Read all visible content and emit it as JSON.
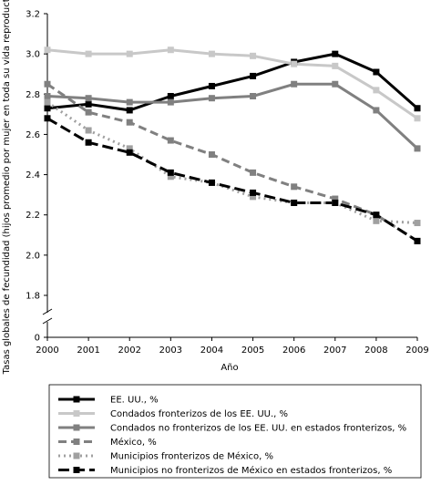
{
  "chart_data": {
    "type": "line",
    "xlabel": "Año",
    "ylabel": "Tasas globales de fecundidad (hijos promedio por mujer en toda su vida reproductiva)",
    "x": [
      2000,
      2001,
      2002,
      2003,
      2004,
      2005,
      2006,
      2007,
      2008,
      2009
    ],
    "y_ticks": [
      "3.2",
      "3.0",
      "2.8",
      "2.6",
      "2.4",
      "2.2",
      "2.0",
      "1.8",
      "0"
    ],
    "ylim": [
      1.8,
      3.2
    ],
    "axis_break": true,
    "grid": false,
    "legend_position": "bottom",
    "series": [
      {
        "name": "EE. UU., %",
        "color": "#000000",
        "style": "solid",
        "values": [
          2.73,
          2.75,
          2.72,
          2.79,
          2.84,
          2.89,
          2.96,
          3.0,
          2.91,
          2.73
        ]
      },
      {
        "name": "Condados fronterizos de los EE. UU., %",
        "color": "#c8c8c8",
        "style": "solid",
        "values": [
          3.02,
          3.0,
          3.0,
          3.02,
          3.0,
          2.99,
          2.95,
          2.94,
          2.82,
          2.68
        ]
      },
      {
        "name": "Condados no fronterizos de los EE. UU. en estados fronterizos, %",
        "color": "#808080",
        "style": "solid",
        "values": [
          2.79,
          2.78,
          2.76,
          2.76,
          2.78,
          2.79,
          2.85,
          2.85,
          2.72,
          2.53
        ]
      },
      {
        "name": "México, %",
        "color": "#808080",
        "style": "dashed",
        "values": [
          2.85,
          2.71,
          2.66,
          2.57,
          2.5,
          2.41,
          2.34,
          2.28,
          2.2,
          2.07
        ]
      },
      {
        "name": "Municipios fronterizos de México, %",
        "color": "#a0a0a0",
        "style": "dotted",
        "values": [
          2.76,
          2.62,
          2.53,
          2.39,
          2.36,
          2.29,
          2.26,
          2.26,
          2.17,
          2.16
        ]
      },
      {
        "name": "Municipios no fronterizos de México en estados fronterizos, %",
        "color": "#000000",
        "style": "longdash",
        "values": [
          2.68,
          2.56,
          2.51,
          2.41,
          2.36,
          2.31,
          2.26,
          2.26,
          2.2,
          2.07
        ]
      }
    ]
  }
}
